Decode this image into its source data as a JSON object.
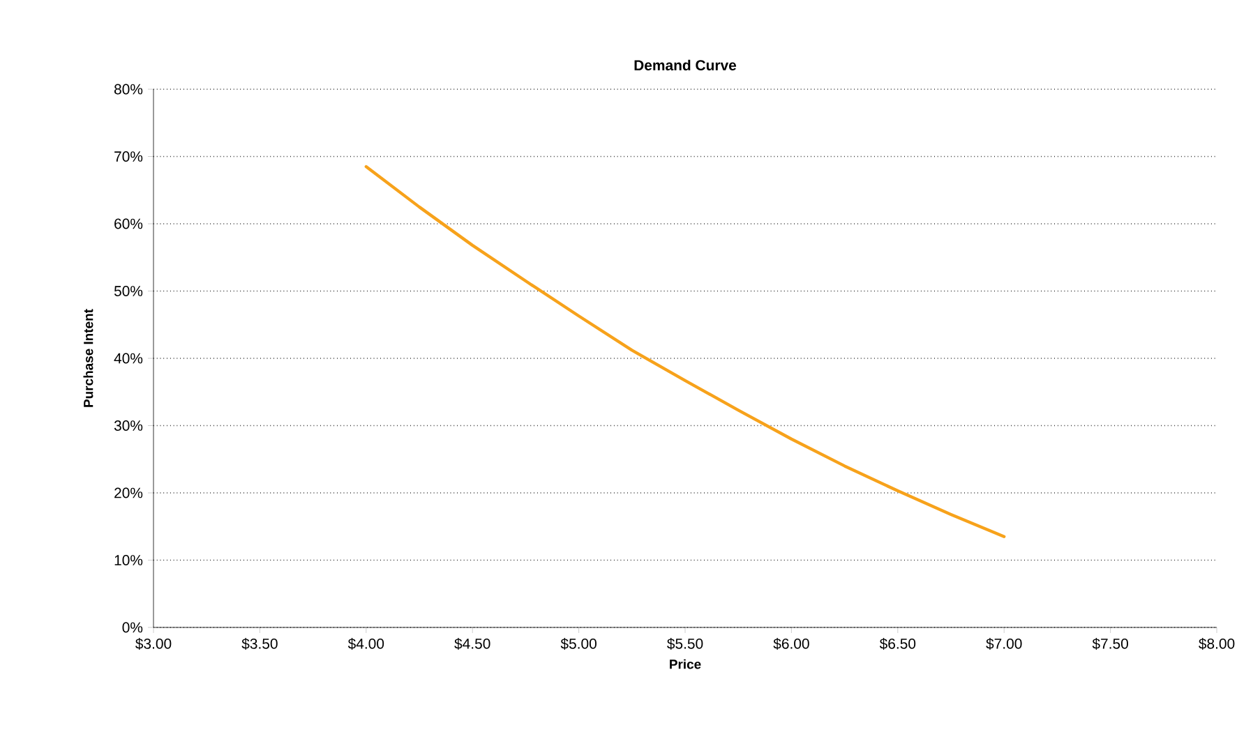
{
  "chart_data": {
    "type": "line",
    "title": "Demand Curve",
    "xlabel": "Price",
    "ylabel": "Purchase Intent",
    "series": [
      {
        "color": "#f7a21b",
        "x": [
          4.0,
          4.25,
          4.5,
          4.75,
          5.0,
          5.25,
          5.5,
          5.75,
          6.0,
          6.25,
          6.5,
          6.75,
          7.0
        ],
        "values": [
          68.5,
          62.5,
          56.8,
          51.5,
          46.3,
          41.2,
          36.7,
          32.3,
          28,
          24,
          20.3,
          16.8,
          13.5
        ]
      }
    ],
    "xlim": [
      3,
      8
    ],
    "ylim": [
      0,
      80
    ],
    "xticks": [
      {
        "value": 3,
        "label": "$3.00"
      },
      {
        "value": 3.5,
        "label": "$3.50"
      },
      {
        "value": 4,
        "label": "$4.00"
      },
      {
        "value": 4.5,
        "label": "$4.50"
      },
      {
        "value": 5,
        "label": "$5.00"
      },
      {
        "value": 5.5,
        "label": "$5.50"
      },
      {
        "value": 6,
        "label": "$6.00"
      },
      {
        "value": 6.5,
        "label": "$6.50"
      },
      {
        "value": 7,
        "label": "$7.00"
      },
      {
        "value": 7.5,
        "label": "$7.50"
      },
      {
        "value": 8,
        "label": "$8.00"
      }
    ],
    "yticks": [
      {
        "value": 0,
        "label": "0%"
      },
      {
        "value": 10,
        "label": "10%"
      },
      {
        "value": 20,
        "label": "20%"
      },
      {
        "value": 30,
        "label": "30%"
      },
      {
        "value": 40,
        "label": "40%"
      },
      {
        "value": 50,
        "label": "50%"
      },
      {
        "value": 60,
        "label": "60%"
      },
      {
        "value": 70,
        "label": "70%"
      },
      {
        "value": 80,
        "label": "80%"
      }
    ],
    "grid": "y",
    "marker": "none",
    "line_style": "solid"
  }
}
